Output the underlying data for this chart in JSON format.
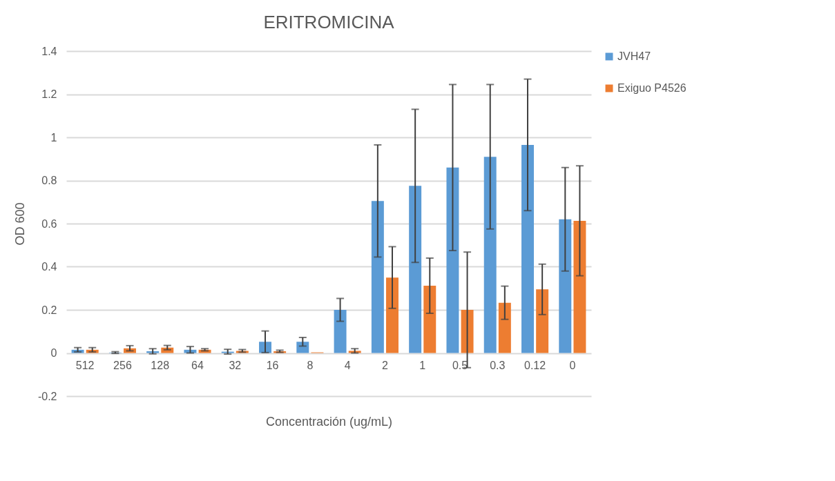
{
  "chart_data": {
    "type": "bar",
    "title": "ERITROMICINA",
    "xlabel": "Concentración (ug/mL)",
    "ylabel": "OD 600",
    "categories": [
      "512",
      "256",
      "128",
      "64",
      "32",
      "16",
      "8",
      "4",
      "2",
      "1",
      "0.5",
      "0.3",
      "0.12",
      "0"
    ],
    "series": [
      {
        "name": "JVH47",
        "color": "#5b9bd5",
        "values": [
          0.015,
          0.002,
          0.008,
          0.015,
          0.006,
          0.052,
          0.052,
          0.2,
          0.705,
          0.775,
          0.86,
          0.91,
          0.965,
          0.62
        ],
        "errors": [
          0.01,
          0.004,
          0.012,
          0.015,
          0.011,
          0.05,
          0.02,
          0.053,
          0.26,
          0.355,
          0.385,
          0.335,
          0.305,
          0.24
        ]
      },
      {
        "name": "Exiguo P4526",
        "color": "#ed7d31",
        "values": [
          0.015,
          0.022,
          0.025,
          0.015,
          0.01,
          0.008,
          0.003,
          0.01,
          0.35,
          0.312,
          0.2,
          0.233,
          0.295,
          0.613
        ],
        "errors": [
          0.01,
          0.012,
          0.01,
          0.005,
          0.006,
          0.005,
          null,
          0.01,
          0.143,
          0.128,
          0.268,
          0.077,
          0.117,
          0.255
        ]
      }
    ],
    "ylim": [
      -0.2,
      1.4
    ],
    "yticks": [
      -0.2,
      0,
      0.2,
      0.4,
      0.6,
      0.8,
      1,
      1.2,
      1.4
    ],
    "grid": "y",
    "legend": "right"
  }
}
